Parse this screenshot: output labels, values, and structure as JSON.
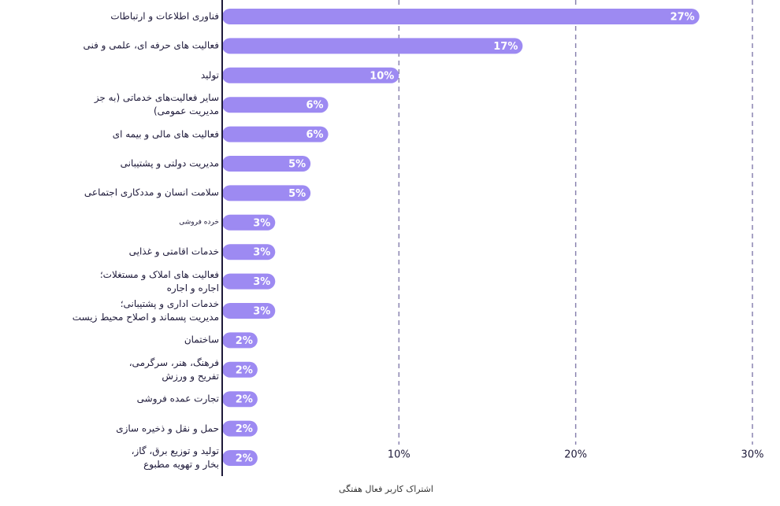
{
  "chart_data": {
    "type": "bar",
    "orientation": "horizontal",
    "x_label": "اشتراک کاربر فعال هفتگی",
    "categories": [
      "فناوری اطلاعات و ارتباطات",
      "فعالیت های حرفه ای، علمی و فنی",
      "تولید",
      "سایر فعالیت‌های خدماتی (به جز\nمدیریت عمومی)",
      "فعالیت های مالی و بیمه ای",
      "مدیریت دولتی و پشتیبانی",
      "سلامت انسان و مددکاری اجتماعی",
      "خرده فروشی",
      "خدمات اقامتی و غذایی",
      "فعالیت های املاک و مستغلات؛\nاجاره و اجاره",
      "خدمات اداری و پشتیبانی؛\nمدیریت پسماند و اصلاح محیط زیست",
      "ساختمان",
      "فرهنگ، هنر، سرگرمی،\nتفریح و ورزش",
      "تجارت عمده فروشی",
      "حمل و نقل و ذخیره سازی",
      "تولید و توزیع برق، گاز،\nبخار و تهویه مطبوع"
    ],
    "values": [
      27,
      17,
      10,
      6,
      6,
      5,
      5,
      3,
      3,
      3,
      3,
      2,
      2,
      2,
      2,
      2
    ],
    "value_labels": [
      "27%",
      "17%",
      "10%",
      "6%",
      "6%",
      "5%",
      "5%",
      "3%",
      "3%",
      "3%",
      "3%",
      "2%",
      "2%",
      "2%",
      "2%",
      "2%"
    ],
    "color": "#9d8af2",
    "xlim": [
      0,
      30
    ],
    "xticks": [
      {
        "value": 10,
        "label": "10%"
      },
      {
        "value": 20,
        "label": "20%"
      },
      {
        "value": 30,
        "label": "30%"
      }
    ],
    "grid": true
  }
}
